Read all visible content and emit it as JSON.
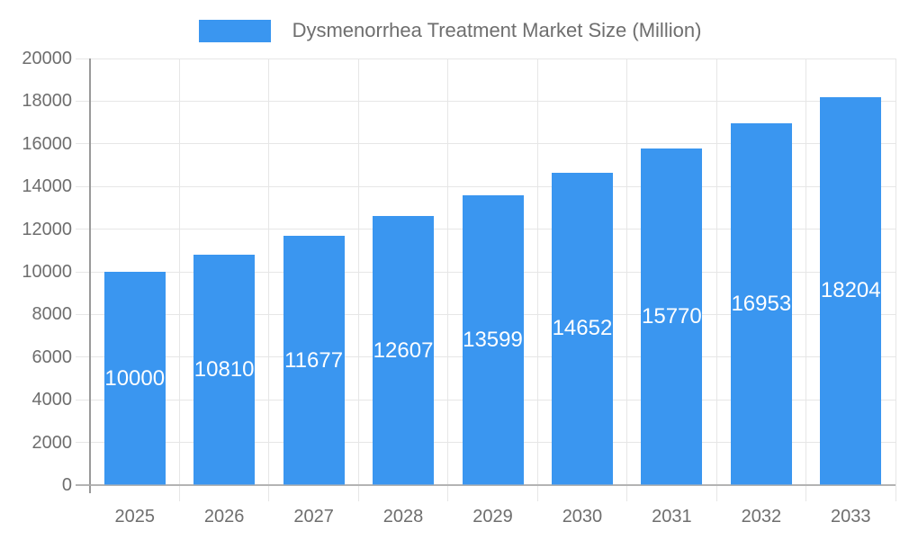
{
  "legend": {
    "swatch_color": "#3A96F0",
    "label": "Dysmenorrhea Treatment Market Size (Million)"
  },
  "chart_data": {
    "type": "bar",
    "title": "Dysmenorrhea Treatment Market Size (Million)",
    "categories": [
      "2025",
      "2026",
      "2027",
      "2028",
      "2029",
      "2030",
      "2031",
      "2032",
      "2033"
    ],
    "values": [
      10000,
      10810,
      11677,
      12607,
      13599,
      14652,
      15770,
      16953,
      18204
    ],
    "xlabel": "",
    "ylabel": "",
    "ylim": [
      0,
      20000
    ],
    "ytick_step": 2000,
    "yticks": [
      0,
      2000,
      4000,
      6000,
      8000,
      10000,
      12000,
      14000,
      16000,
      18000,
      20000
    ],
    "grid": true,
    "legend_position": "top-center",
    "value_labels": "inside-center",
    "colors": {
      "bar": "#3A96F0",
      "grid": "#e6e6e6",
      "baseline": "#b3b3b3",
      "axis": "#999999",
      "tick_text": "#6e6e6e",
      "legend_text": "#6e6e6e",
      "value_label_text": "#ffffff"
    }
  }
}
